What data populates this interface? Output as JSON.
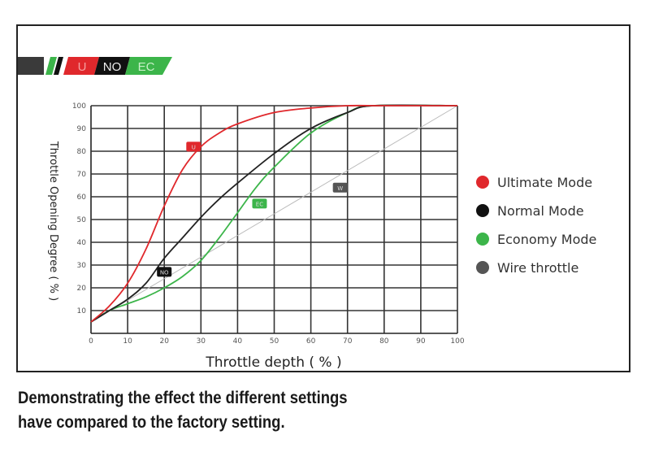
{
  "banner": {
    "logo_text": [
      "U",
      "NO",
      "EC"
    ]
  },
  "caption": {
    "line1": "Demonstrating the effect the different settings",
    "line2": "have compared to the factory setting."
  },
  "chart_data": {
    "type": "line",
    "title": "",
    "xlabel": "Throttle depth ( % )",
    "ylabel": "Throttle Opening Degree ( % )",
    "xlim": [
      0,
      100
    ],
    "ylim": [
      0,
      100
    ],
    "xticks": [
      0,
      10,
      20,
      30,
      40,
      50,
      60,
      70,
      80,
      90,
      100
    ],
    "yticks": [
      10,
      20,
      30,
      40,
      50,
      60,
      70,
      80,
      90,
      100
    ],
    "grid": true,
    "legend_position": "right",
    "series": [
      {
        "name": "Ultimate Mode",
        "badge": "U",
        "color": "#e0282c",
        "x": [
          0,
          5,
          10,
          15,
          20,
          25,
          30,
          35,
          40,
          50,
          60,
          70,
          80,
          100
        ],
        "y": [
          5,
          12,
          22,
          37,
          56,
          72,
          82,
          88,
          92,
          97,
          99,
          100,
          100,
          100
        ],
        "annotation": {
          "x": 28,
          "y": 82
        }
      },
      {
        "name": "Normal Mode",
        "badge": "NO",
        "color": "#222222",
        "x": [
          0,
          5,
          10,
          15,
          20,
          25,
          30,
          35,
          40,
          50,
          60,
          70,
          77,
          100
        ],
        "y": [
          5,
          10,
          15,
          22,
          33,
          42,
          51,
          59,
          66,
          79,
          90,
          97,
          100,
          100
        ],
        "annotation": {
          "x": 20,
          "y": 27
        }
      },
      {
        "name": "Economy Mode",
        "badge": "EC",
        "color": "#3cb54a",
        "x": [
          0,
          5,
          10,
          15,
          20,
          25,
          30,
          35,
          40,
          45,
          50,
          60,
          70,
          77,
          100
        ],
        "y": [
          5,
          10,
          13,
          16,
          20,
          25,
          32,
          42,
          53,
          64,
          73,
          88,
          97,
          100,
          100
        ],
        "annotation": {
          "x": 46,
          "y": 57
        }
      },
      {
        "name": "Wire throttle",
        "badge": "W",
        "color": "#bbbbbb",
        "x": [
          0,
          100
        ],
        "y": [
          5,
          100
        ],
        "annotation": {
          "x": 68,
          "y": 64
        }
      }
    ]
  }
}
